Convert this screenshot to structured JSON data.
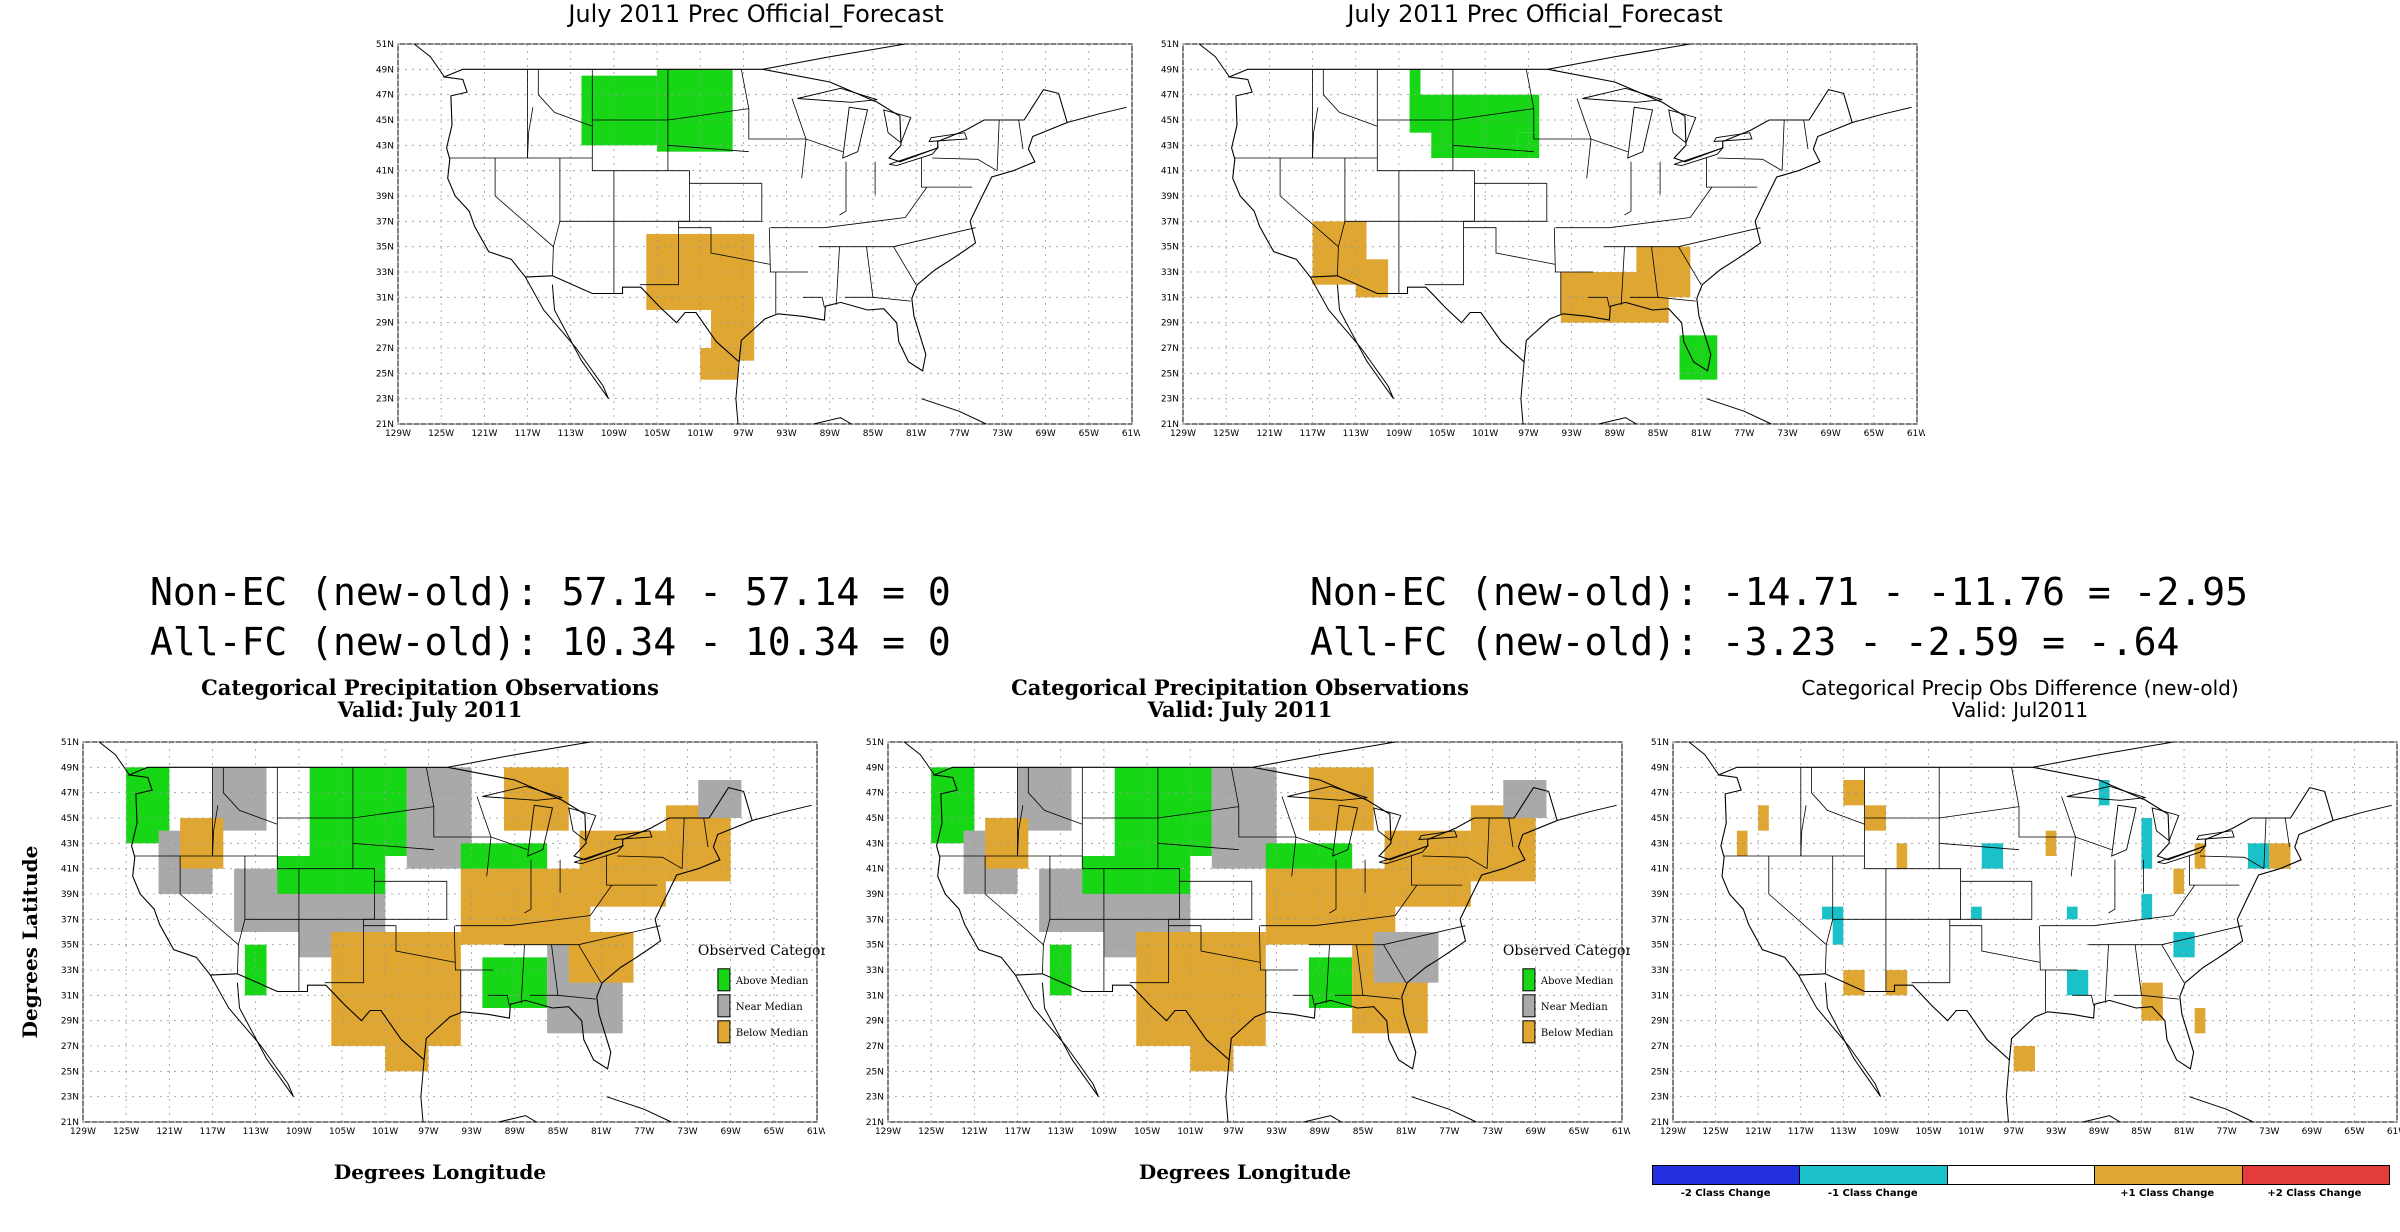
{
  "colors": {
    "above": "#16d616",
    "near": "#a9a9a9",
    "below": "#dfa632",
    "cyan": "#1ac1c9",
    "diff_m2": "#2330e0",
    "diff_m1": "#1ac1c9",
    "diff_0": "#ffffff",
    "diff_p1": "#dfa632",
    "diff_p2": "#e43b3b",
    "border": "#000000",
    "grid": "#9a9a9a"
  },
  "lon_ticks": [
    "129W",
    "125W",
    "121W",
    "117W",
    "113W",
    "109W",
    "105W",
    "101W",
    "97W",
    "93W",
    "89W",
    "85W",
    "81W",
    "77W",
    "73W",
    "69W",
    "65W",
    "61W"
  ],
  "lat_ticks": [
    "51N",
    "49N",
    "47N",
    "45N",
    "43N",
    "41N",
    "39N",
    "37N",
    "35N",
    "33N",
    "31N",
    "29N",
    "27N",
    "25N",
    "23N",
    "21N"
  ],
  "panels": {
    "forecast_old": {
      "title": "July 2011 Prec Official_Forecast"
    },
    "forecast_new": {
      "title": "July 2011 Prec Official_Forecast"
    },
    "obs_old": {
      "title": "Categorical Precipitation Observations",
      "subtitle": "Valid: July 2011",
      "xlabel": "Degrees Longitude",
      "ylabel": "Degrees Latitude"
    },
    "obs_new": {
      "title": "Categorical Precipitation Observations",
      "subtitle": "Valid: July 2011",
      "xlabel": "Degrees Longitude"
    },
    "diff": {
      "title": "Categorical Precip Obs Difference (new-old)",
      "subtitle": "Valid: Jul2011"
    }
  },
  "stats": {
    "left_nonec": "Non-EC (new-old): 57.14 - 57.14 = 0",
    "left_allfc": "All-FC (new-old): 10.34 - 10.34 = 0",
    "right_nonec": "Non-EC (new-old): -14.71 - -11.76 = -2.95",
    "right_allfc": "All-FC (new-old): -3.23 - -2.59 = -.64"
  },
  "legend": {
    "title": "Observed Category",
    "items": [
      {
        "label": "Above Median",
        "color": "#16d616"
      },
      {
        "label": "Near Median",
        "color": "#a9a9a9"
      },
      {
        "label": "Below Median",
        "color": "#dfa632"
      }
    ]
  },
  "diff_bar": {
    "labels": [
      "-2 Class Change",
      "-1 Class Change",
      "",
      "+1 Class Change",
      "+2 Class Change"
    ]
  }
}
